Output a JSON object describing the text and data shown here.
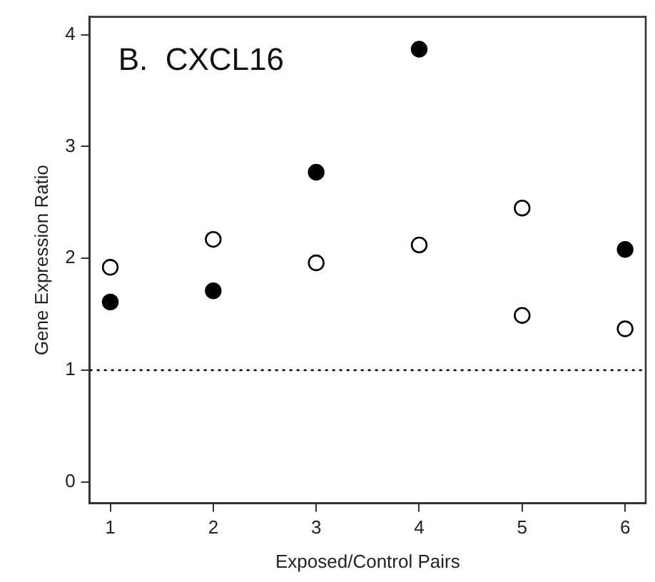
{
  "chart_data": {
    "type": "scatter",
    "title": "B.  CXCL16",
    "xlabel": "Exposed/Control Pairs",
    "ylabel": "Gene Expression Ratio",
    "xlim": [
      0.8,
      6.2
    ],
    "xticks": [
      1,
      2,
      3,
      4,
      5,
      6
    ],
    "ylim": [
      -0.19,
      4.16
    ],
    "yticks": [
      0,
      1,
      2,
      3,
      4
    ],
    "series": [
      {
        "color": "#000000",
        "x": [
          1,
          2,
          3,
          4,
          6
        ],
        "values": [
          1.61,
          1.71,
          2.77,
          3.87,
          2.08
        ]
      },
      {
        "color": "#ffffff",
        "x": [
          1,
          2,
          3,
          4,
          5,
          5,
          6
        ],
        "values": [
          1.92,
          2.17,
          1.96,
          2.12,
          2.45,
          1.49,
          1.37
        ]
      }
    ],
    "ref_lines": [
      {
        "axis": "y",
        "value": 1,
        "line_style": "dotted"
      }
    ],
    "grid": false,
    "legend": false,
    "marker": "circle"
  }
}
